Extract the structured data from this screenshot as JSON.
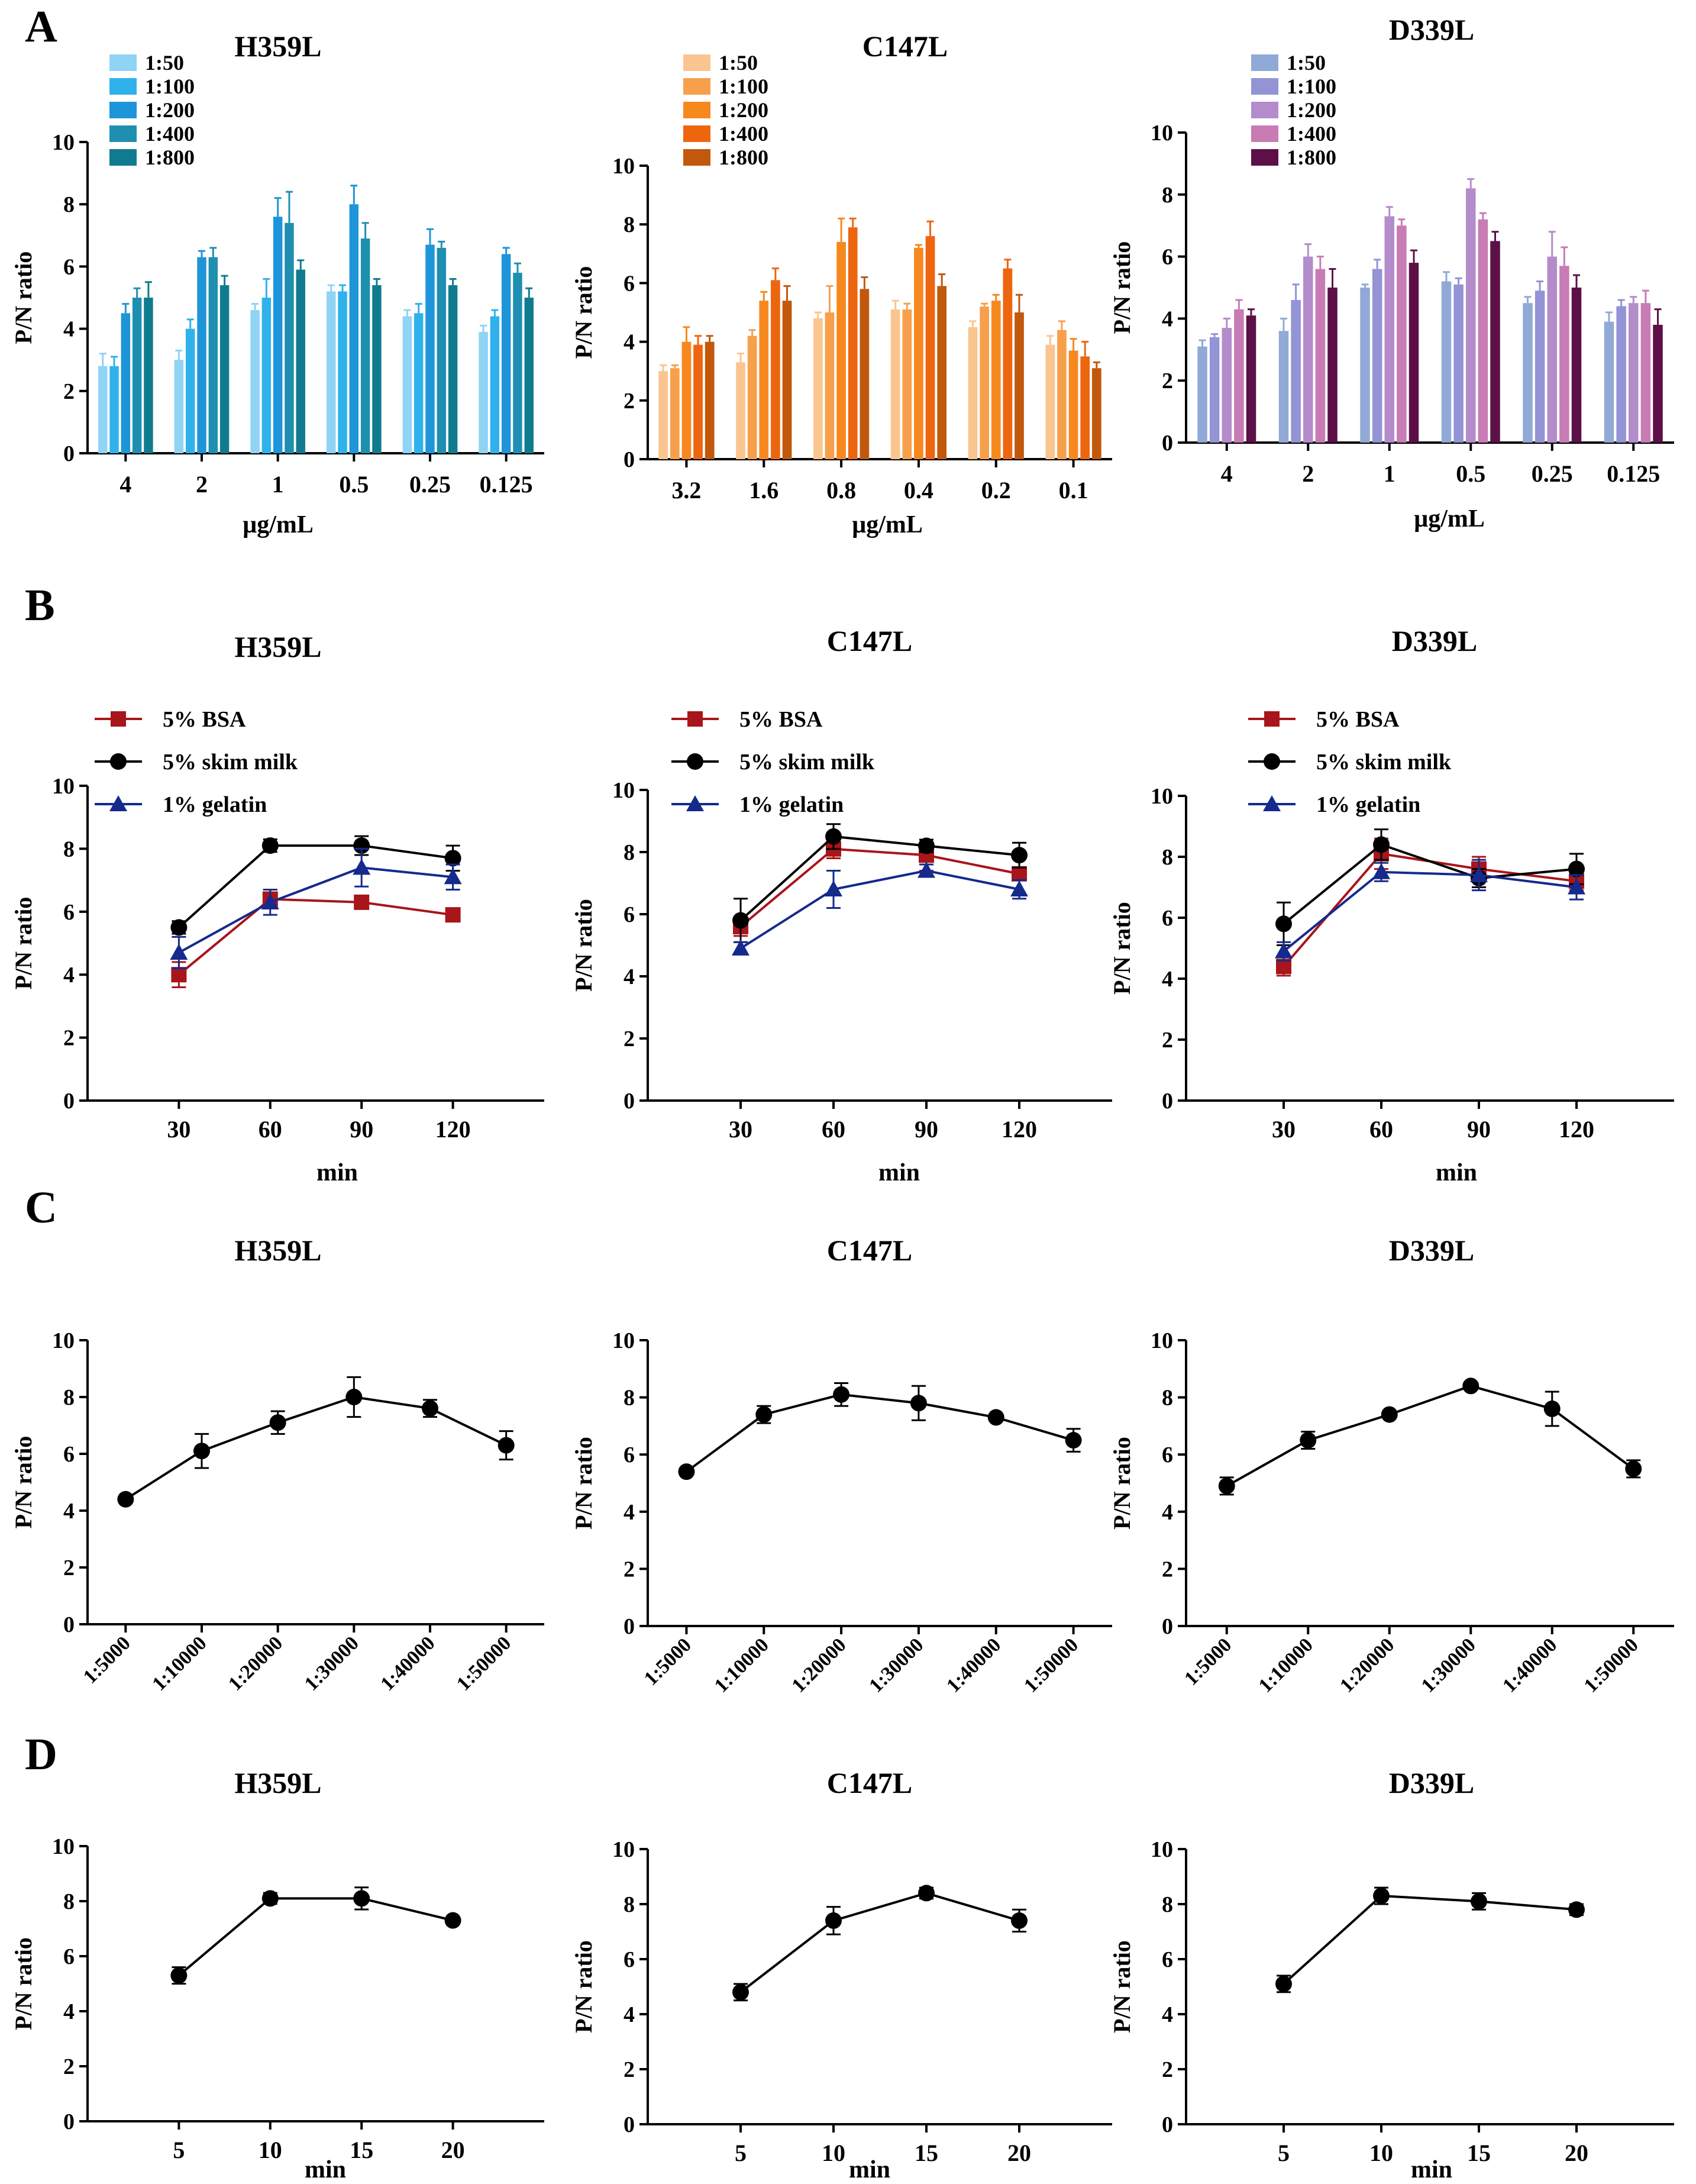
{
  "figure": {
    "panel_labels": [
      "A",
      "B",
      "C",
      "D"
    ],
    "colors": {
      "axis": "#000000",
      "blue_shades": [
        "#8fd3f5",
        "#2fb2ec",
        "#1e95d8",
        "#1e8fb0",
        "#107b8e"
      ],
      "orange_shades": [
        "#fbc58f",
        "#f7a04c",
        "#f7881e",
        "#ee6510",
        "#c1580c"
      ],
      "purple_shades": [
        "#91a9d6",
        "#9393d6",
        "#b48bcb",
        "#c87bb4",
        "#5d0f48"
      ],
      "bsa": "#a8151b",
      "skim_milk": "#000000",
      "gelatin": "#152a8c"
    }
  },
  "chart_data": [
    {
      "panel": "A",
      "type": "bar",
      "title": "H359L",
      "xlabel": "µg/mL",
      "ylabel": "P/N ratio",
      "ylim": [
        0,
        10
      ],
      "yticks": [
        0,
        2,
        4,
        6,
        8,
        10
      ],
      "legend": "top-left",
      "palette": "blue_shades",
      "categories": [
        "4",
        "2",
        "1",
        "0.5",
        "0.25",
        "0.125"
      ],
      "series": [
        {
          "name": "1:50",
          "values": [
            2.8,
            3.0,
            4.6,
            5.2,
            4.4,
            3.9
          ],
          "errors": [
            0.4,
            0.3,
            0.2,
            0.2,
            0.2,
            0.2
          ]
        },
        {
          "name": "1:100",
          "values": [
            2.8,
            4.0,
            5.0,
            5.2,
            4.5,
            4.4
          ],
          "errors": [
            0.3,
            0.3,
            0.6,
            0.2,
            0.3,
            0.2
          ]
        },
        {
          "name": "1:200",
          "values": [
            4.5,
            6.3,
            7.6,
            8.0,
            6.7,
            6.4
          ],
          "errors": [
            0.3,
            0.2,
            0.6,
            0.6,
            0.5,
            0.2
          ]
        },
        {
          "name": "1:400",
          "values": [
            5.0,
            6.3,
            7.4,
            6.9,
            6.6,
            5.8
          ],
          "errors": [
            0.3,
            0.3,
            1.0,
            0.5,
            0.2,
            0.3
          ]
        },
        {
          "name": "1:800",
          "values": [
            5.0,
            5.4,
            5.9,
            5.4,
            5.4,
            5.0
          ],
          "errors": [
            0.5,
            0.3,
            0.3,
            0.2,
            0.2,
            0.3
          ]
        }
      ]
    },
    {
      "panel": "A",
      "type": "bar",
      "title": "C147L",
      "xlabel": "µg/mL",
      "ylabel": "P/N ratio",
      "ylim": [
        0,
        10
      ],
      "yticks": [
        0,
        2,
        4,
        6,
        8,
        10
      ],
      "legend": "top-left",
      "palette": "orange_shades",
      "categories": [
        "3.2",
        "1.6",
        "0.8",
        "0.4",
        "0.2",
        "0.1"
      ],
      "series": [
        {
          "name": "1:50",
          "values": [
            3.0,
            3.3,
            4.8,
            5.1,
            4.5,
            3.9
          ],
          "errors": [
            0.2,
            0.3,
            0.2,
            0.3,
            0.2,
            0.3
          ]
        },
        {
          "name": "1:100",
          "values": [
            3.1,
            4.2,
            5.0,
            5.1,
            5.2,
            4.4
          ],
          "errors": [
            0.1,
            0.2,
            0.9,
            0.2,
            0.1,
            0.3
          ]
        },
        {
          "name": "1:200",
          "values": [
            4.0,
            5.4,
            7.4,
            7.2,
            5.4,
            3.7
          ],
          "errors": [
            0.5,
            0.3,
            0.8,
            0.1,
            0.2,
            0.4
          ]
        },
        {
          "name": "1:400",
          "values": [
            3.9,
            6.1,
            7.9,
            7.6,
            6.5,
            3.5
          ],
          "errors": [
            0.3,
            0.4,
            0.3,
            0.5,
            0.3,
            0.5
          ]
        },
        {
          "name": "1:800",
          "values": [
            4.0,
            5.4,
            5.8,
            5.9,
            5.0,
            3.1
          ],
          "errors": [
            0.2,
            0.5,
            0.4,
            0.4,
            0.6,
            0.2
          ]
        }
      ]
    },
    {
      "panel": "A",
      "type": "bar",
      "title": "D339L",
      "xlabel": "µg/mL",
      "ylabel": "P/N ratio",
      "ylim": [
        0,
        10
      ],
      "yticks": [
        0,
        2,
        4,
        6,
        8,
        10
      ],
      "legend": "top-left",
      "palette": "purple_shades",
      "categories": [
        "4",
        "2",
        "1",
        "0.5",
        "0.25",
        "0.125"
      ],
      "series": [
        {
          "name": "1:50",
          "values": [
            3.1,
            3.6,
            5.0,
            5.2,
            4.5,
            3.9
          ],
          "errors": [
            0.2,
            0.4,
            0.1,
            0.3,
            0.2,
            0.3
          ]
        },
        {
          "name": "1:100",
          "values": [
            3.4,
            4.6,
            5.6,
            5.1,
            4.9,
            4.4
          ],
          "errors": [
            0.1,
            0.5,
            0.3,
            0.2,
            0.3,
            0.2
          ]
        },
        {
          "name": "1:200",
          "values": [
            3.7,
            6.0,
            7.3,
            8.2,
            6.0,
            4.5
          ],
          "errors": [
            0.3,
            0.4,
            0.3,
            0.3,
            0.8,
            0.2
          ]
        },
        {
          "name": "1:400",
          "values": [
            4.3,
            5.6,
            7.0,
            7.2,
            5.7,
            4.5
          ],
          "errors": [
            0.3,
            0.4,
            0.2,
            0.2,
            0.6,
            0.4
          ]
        },
        {
          "name": "1:800",
          "values": [
            4.1,
            5.0,
            5.8,
            6.5,
            5.0,
            3.8
          ],
          "errors": [
            0.2,
            0.6,
            0.4,
            0.3,
            0.4,
            0.5
          ]
        }
      ]
    },
    {
      "panel": "B",
      "type": "line",
      "title": "H359L",
      "xlabel": "min",
      "ylabel": "P/N ratio",
      "ylim": [
        0,
        10
      ],
      "yticks": [
        0,
        2,
        4,
        6,
        8,
        10
      ],
      "xlim": [
        0,
        150
      ],
      "legend": "top-left",
      "x": [
        30,
        60,
        90,
        120
      ],
      "xticks": [
        "30",
        "60",
        "90",
        "120"
      ],
      "series": [
        {
          "name": "5% BSA",
          "marker": "square",
          "color": "bsa",
          "values": [
            4.0,
            6.4,
            6.3,
            5.9
          ],
          "errors": [
            0.4,
            0.3,
            0.1,
            0.2
          ]
        },
        {
          "name": "5% skim milk",
          "marker": "circle",
          "color": "skim_milk",
          "values": [
            5.5,
            8.1,
            8.1,
            7.7
          ],
          "errors": [
            0.2,
            0.2,
            0.3,
            0.4
          ]
        },
        {
          "name": "1% gelatin",
          "marker": "triangle",
          "color": "gelatin",
          "values": [
            4.7,
            6.3,
            7.4,
            7.1
          ],
          "errors": [
            0.5,
            0.4,
            0.6,
            0.4
          ]
        }
      ]
    },
    {
      "panel": "B",
      "type": "line",
      "title": "C147L",
      "xlabel": "min",
      "ylabel": "P/N ratio",
      "ylim": [
        0,
        10
      ],
      "yticks": [
        0,
        2,
        4,
        6,
        8,
        10
      ],
      "xlim": [
        0,
        150
      ],
      "legend": "top-left",
      "x": [
        30,
        60,
        90,
        120
      ],
      "xticks": [
        "30",
        "60",
        "90",
        "120"
      ],
      "series": [
        {
          "name": "5% BSA",
          "marker": "square",
          "color": "bsa",
          "values": [
            5.6,
            8.1,
            7.9,
            7.3
          ],
          "errors": [
            0.3,
            0.3,
            0.5,
            0.2
          ]
        },
        {
          "name": "5% skim milk",
          "marker": "circle",
          "color": "skim_milk",
          "values": [
            5.8,
            8.5,
            8.2,
            7.9
          ],
          "errors": [
            0.7,
            0.4,
            0.2,
            0.4
          ]
        },
        {
          "name": "1% gelatin",
          "marker": "triangle",
          "color": "gelatin",
          "values": [
            4.9,
            6.8,
            7.4,
            6.8
          ],
          "errors": [
            0.2,
            0.6,
            0.2,
            0.3
          ]
        }
      ]
    },
    {
      "panel": "B",
      "type": "line",
      "title": "D339L",
      "xlabel": "min",
      "ylabel": "P/N ratio",
      "ylim": [
        0,
        10
      ],
      "yticks": [
        0,
        2,
        4,
        6,
        8,
        10
      ],
      "xlim": [
        0,
        150
      ],
      "legend": "top-left",
      "x": [
        30,
        60,
        90,
        120
      ],
      "xticks": [
        "30",
        "60",
        "90",
        "120"
      ],
      "series": [
        {
          "name": "5% BSA",
          "marker": "square",
          "color": "bsa",
          "values": [
            4.4,
            8.1,
            7.6,
            7.2
          ],
          "errors": [
            0.3,
            0.5,
            0.4,
            0.3
          ]
        },
        {
          "name": "5% skim milk",
          "marker": "circle",
          "color": "skim_milk",
          "values": [
            5.8,
            8.4,
            7.3,
            7.6
          ],
          "errors": [
            0.7,
            0.5,
            0.3,
            0.5
          ]
        },
        {
          "name": "1% gelatin",
          "marker": "triangle",
          "color": "gelatin",
          "values": [
            4.9,
            7.5,
            7.4,
            7.0
          ],
          "errors": [
            0.3,
            0.3,
            0.5,
            0.4
          ]
        }
      ]
    },
    {
      "panel": "C",
      "type": "line",
      "title": "H359L",
      "xlabel": "",
      "ylabel": "P/N ratio",
      "ylim": [
        0,
        10
      ],
      "yticks": [
        0,
        2,
        4,
        6,
        8,
        10
      ],
      "xtick_rotation": -45,
      "categories": [
        "1:5000",
        "1:10000",
        "1:20000",
        "1:30000",
        "1:40000",
        "1:50000"
      ],
      "series": [
        {
          "name": "H359L",
          "marker": "circle",
          "color": "skim_milk",
          "values": [
            4.4,
            6.1,
            7.1,
            8.0,
            7.6,
            6.3
          ],
          "errors": [
            0.1,
            0.6,
            0.4,
            0.7,
            0.3,
            0.5
          ]
        }
      ]
    },
    {
      "panel": "C",
      "type": "line",
      "title": "C147L",
      "xlabel": "",
      "ylabel": "P/N ratio",
      "ylim": [
        0,
        10
      ],
      "yticks": [
        0,
        2,
        4,
        6,
        8,
        10
      ],
      "xtick_rotation": -45,
      "categories": [
        "1:5000",
        "1:10000",
        "1:20000",
        "1:30000",
        "1:40000",
        "1:50000"
      ],
      "series": [
        {
          "name": "C147L",
          "marker": "circle",
          "color": "skim_milk",
          "values": [
            5.4,
            7.4,
            8.1,
            7.8,
            7.3,
            6.5
          ],
          "errors": [
            0.0,
            0.3,
            0.4,
            0.6,
            0.0,
            0.4
          ]
        }
      ]
    },
    {
      "panel": "C",
      "type": "line",
      "title": "D339L",
      "xlabel": "",
      "ylabel": "P/N ratio",
      "ylim": [
        0,
        10
      ],
      "yticks": [
        0,
        2,
        4,
        6,
        8,
        10
      ],
      "xtick_rotation": -45,
      "categories": [
        "1:5000",
        "1:10000",
        "1:20000",
        "1:30000",
        "1:40000",
        "1:50000"
      ],
      "series": [
        {
          "name": "D339L",
          "marker": "circle",
          "color": "skim_milk",
          "values": [
            4.9,
            6.5,
            7.4,
            8.4,
            7.6,
            5.5
          ],
          "errors": [
            0.3,
            0.3,
            0.1,
            0.0,
            0.6,
            0.3
          ]
        }
      ]
    },
    {
      "panel": "D",
      "type": "line",
      "title": "H359L",
      "xlabel": "min",
      "ylabel": "P/N ratio",
      "ylim": [
        0,
        10
      ],
      "yticks": [
        0,
        2,
        4,
        6,
        8,
        10
      ],
      "xlim": [
        0,
        25
      ],
      "x": [
        5,
        10,
        15,
        20
      ],
      "xticks": [
        "5",
        "10",
        "15",
        "20"
      ],
      "series": [
        {
          "name": "H359L",
          "marker": "circle",
          "color": "skim_milk",
          "values": [
            5.3,
            8.1,
            8.1,
            7.3
          ],
          "errors": [
            0.3,
            0.2,
            0.4,
            0.1
          ]
        }
      ]
    },
    {
      "panel": "D",
      "type": "line",
      "title": "C147L",
      "xlabel": "min",
      "ylabel": "P/N ratio",
      "ylim": [
        0,
        10
      ],
      "yticks": [
        0,
        2,
        4,
        6,
        8,
        10
      ],
      "xlim": [
        0,
        25
      ],
      "x": [
        5,
        10,
        15,
        20
      ],
      "xticks": [
        "5",
        "10",
        "15",
        "20"
      ],
      "series": [
        {
          "name": "C147L",
          "marker": "circle",
          "color": "skim_milk",
          "values": [
            4.8,
            7.4,
            8.4,
            7.4
          ],
          "errors": [
            0.3,
            0.5,
            0.2,
            0.4
          ]
        }
      ]
    },
    {
      "panel": "D",
      "type": "line",
      "title": "D339L",
      "xlabel": "min",
      "ylabel": "P/N ratio",
      "ylim": [
        0,
        10
      ],
      "yticks": [
        0,
        2,
        4,
        6,
        8,
        10
      ],
      "xlim": [
        0,
        25
      ],
      "x": [
        5,
        10,
        15,
        20
      ],
      "xticks": [
        "5",
        "10",
        "15",
        "20"
      ],
      "series": [
        {
          "name": "D339L",
          "marker": "circle",
          "color": "skim_milk",
          "values": [
            5.1,
            8.3,
            8.1,
            7.8
          ],
          "errors": [
            0.3,
            0.3,
            0.3,
            0.2
          ]
        }
      ]
    }
  ]
}
